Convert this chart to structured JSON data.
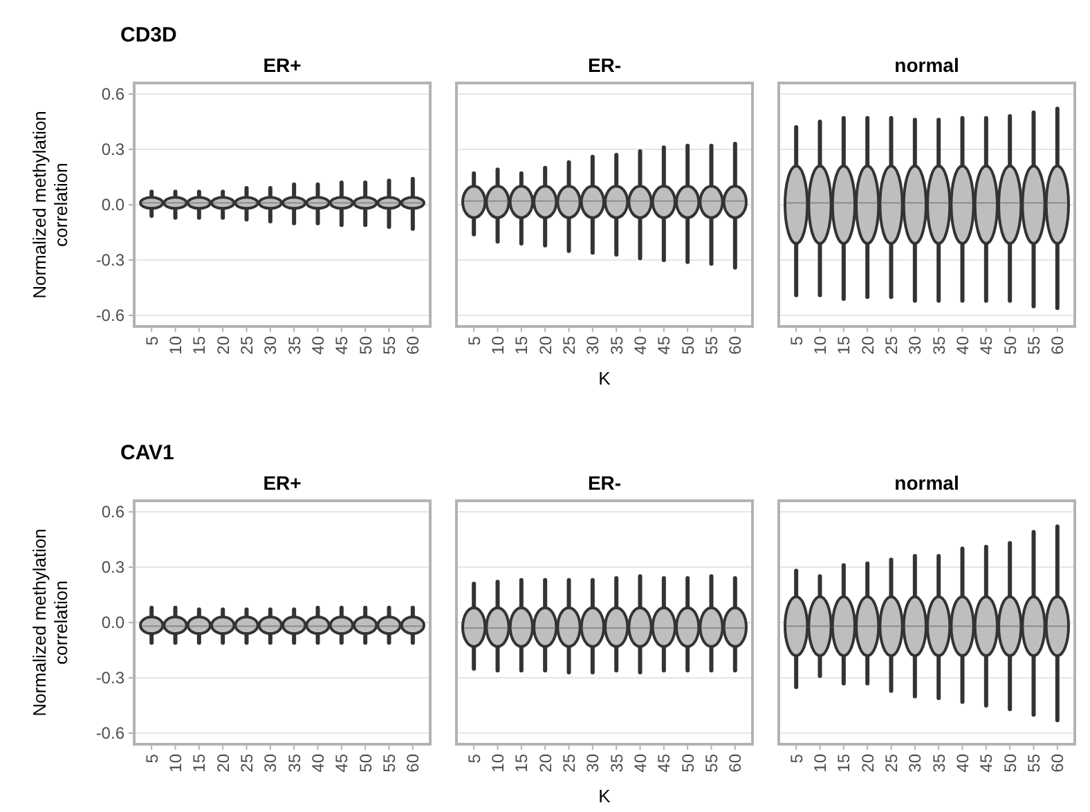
{
  "chart_data": [
    {
      "type": "box",
      "title": "CD3D",
      "subtitle": "ER+",
      "ylabel": "Normalized methylation correlation",
      "categories": [
        "5",
        "10",
        "15",
        "20",
        "25",
        "30",
        "35",
        "40",
        "45",
        "50",
        "55",
        "60"
      ],
      "ylim": [
        -0.66,
        0.66
      ],
      "yticks": [
        {
          "value": 0.6,
          "label": "0.6"
        },
        {
          "value": 0.3,
          "label": "0.3"
        },
        {
          "value": 0,
          "label": "0.0"
        },
        {
          "value": -0.3,
          "label": "-0.3"
        },
        {
          "value": -0.6,
          "label": "-0.6"
        }
      ],
      "grid": "y",
      "color": "#bebebe",
      "boxes": [
        {
          "low": -0.06,
          "q1": -0.02,
          "median": 0.01,
          "q3": 0.04,
          "high": 0.07
        },
        {
          "low": -0.07,
          "q1": -0.02,
          "median": 0.01,
          "q3": 0.04,
          "high": 0.07
        },
        {
          "low": -0.07,
          "q1": -0.02,
          "median": 0.01,
          "q3": 0.04,
          "high": 0.07
        },
        {
          "low": -0.07,
          "q1": -0.02,
          "median": 0.01,
          "q3": 0.04,
          "high": 0.07
        },
        {
          "low": -0.08,
          "q1": -0.02,
          "median": 0.01,
          "q3": 0.04,
          "high": 0.09
        },
        {
          "low": -0.09,
          "q1": -0.02,
          "median": 0.01,
          "q3": 0.04,
          "high": 0.09
        },
        {
          "low": -0.1,
          "q1": -0.02,
          "median": 0.01,
          "q3": 0.04,
          "high": 0.11
        },
        {
          "low": -0.1,
          "q1": -0.02,
          "median": 0.01,
          "q3": 0.04,
          "high": 0.11
        },
        {
          "low": -0.11,
          "q1": -0.02,
          "median": 0.01,
          "q3": 0.04,
          "high": 0.12
        },
        {
          "low": -0.11,
          "q1": -0.02,
          "median": 0.01,
          "q3": 0.04,
          "high": 0.12
        },
        {
          "low": -0.12,
          "q1": -0.02,
          "median": 0.01,
          "q3": 0.04,
          "high": 0.13
        },
        {
          "low": -0.13,
          "q1": -0.02,
          "median": 0.01,
          "q3": 0.04,
          "high": 0.14
        }
      ]
    },
    {
      "type": "box",
      "subtitle": "ER-",
      "xlabel": "K",
      "categories": [
        "5",
        "10",
        "15",
        "20",
        "25",
        "30",
        "35",
        "40",
        "45",
        "50",
        "55",
        "60"
      ],
      "ylim": [
        -0.66,
        0.66
      ],
      "yticks": [
        0.6,
        0.3,
        0,
        -0.3,
        -0.6
      ],
      "tick_labels": "x",
      "grid": "y",
      "color": "#bebebe",
      "boxes": [
        {
          "low": -0.16,
          "q1": -0.07,
          "median": 0.02,
          "q3": 0.1,
          "high": 0.17
        },
        {
          "low": -0.2,
          "q1": -0.07,
          "median": 0.02,
          "q3": 0.1,
          "high": 0.19
        },
        {
          "low": -0.21,
          "q1": -0.07,
          "median": 0.02,
          "q3": 0.1,
          "high": 0.17
        },
        {
          "low": -0.22,
          "q1": -0.07,
          "median": 0.02,
          "q3": 0.1,
          "high": 0.2
        },
        {
          "low": -0.25,
          "q1": -0.07,
          "median": 0.02,
          "q3": 0.1,
          "high": 0.23
        },
        {
          "low": -0.26,
          "q1": -0.07,
          "median": 0.02,
          "q3": 0.1,
          "high": 0.26
        },
        {
          "low": -0.27,
          "q1": -0.07,
          "median": 0.02,
          "q3": 0.1,
          "high": 0.27
        },
        {
          "low": -0.29,
          "q1": -0.07,
          "median": 0.02,
          "q3": 0.1,
          "high": 0.29
        },
        {
          "low": -0.3,
          "q1": -0.07,
          "median": 0.02,
          "q3": 0.1,
          "high": 0.31
        },
        {
          "low": -0.31,
          "q1": -0.07,
          "median": 0.02,
          "q3": 0.1,
          "high": 0.32
        },
        {
          "low": -0.32,
          "q1": -0.07,
          "median": 0.02,
          "q3": 0.1,
          "high": 0.32
        },
        {
          "low": -0.34,
          "q1": -0.07,
          "median": 0.02,
          "q3": 0.1,
          "high": 0.33
        }
      ]
    },
    {
      "type": "box",
      "subtitle": "normal",
      "categories": [
        "5",
        "10",
        "15",
        "20",
        "25",
        "30",
        "35",
        "40",
        "45",
        "50",
        "55",
        "60"
      ],
      "ylim": [
        -0.66,
        0.66
      ],
      "yticks": [
        0.6,
        0.3,
        0,
        -0.3,
        -0.6
      ],
      "tick_labels": "x",
      "grid": "y",
      "color": "#bebebe",
      "boxes": [
        {
          "low": -0.49,
          "q1": -0.21,
          "median": 0.01,
          "q3": 0.21,
          "high": 0.42
        },
        {
          "low": -0.49,
          "q1": -0.21,
          "median": 0.01,
          "q3": 0.21,
          "high": 0.45
        },
        {
          "low": -0.51,
          "q1": -0.21,
          "median": 0.01,
          "q3": 0.21,
          "high": 0.47
        },
        {
          "low": -0.5,
          "q1": -0.21,
          "median": 0.01,
          "q3": 0.21,
          "high": 0.47
        },
        {
          "low": -0.5,
          "q1": -0.21,
          "median": 0.01,
          "q3": 0.21,
          "high": 0.47
        },
        {
          "low": -0.52,
          "q1": -0.21,
          "median": 0.01,
          "q3": 0.21,
          "high": 0.46
        },
        {
          "low": -0.52,
          "q1": -0.21,
          "median": 0.01,
          "q3": 0.21,
          "high": 0.46
        },
        {
          "low": -0.52,
          "q1": -0.21,
          "median": 0.01,
          "q3": 0.21,
          "high": 0.47
        },
        {
          "low": -0.52,
          "q1": -0.21,
          "median": 0.01,
          "q3": 0.21,
          "high": 0.47
        },
        {
          "low": -0.52,
          "q1": -0.21,
          "median": 0.01,
          "q3": 0.21,
          "high": 0.48
        },
        {
          "low": -0.55,
          "q1": -0.21,
          "median": 0.01,
          "q3": 0.21,
          "high": 0.5
        },
        {
          "low": -0.56,
          "q1": -0.21,
          "median": 0.01,
          "q3": 0.21,
          "high": 0.52
        }
      ]
    },
    {
      "type": "box",
      "title": "CAV1",
      "subtitle": "ER+",
      "ylabel": "Normalized methylation correlation",
      "categories": [
        "5",
        "10",
        "15",
        "20",
        "25",
        "30",
        "35",
        "40",
        "45",
        "50",
        "55",
        "60"
      ],
      "ylim": [
        -0.66,
        0.66
      ],
      "yticks": [
        {
          "value": 0.6,
          "label": "0.6"
        },
        {
          "value": 0.3,
          "label": "0.3"
        },
        {
          "value": 0,
          "label": "0.0"
        },
        {
          "value": -0.3,
          "label": "-0.3"
        },
        {
          "value": -0.6,
          "label": "-0.6"
        }
      ],
      "grid": "y",
      "color": "#bebebe",
      "boxes": [
        {
          "low": -0.11,
          "q1": -0.06,
          "median": -0.02,
          "q3": 0.03,
          "high": 0.08
        },
        {
          "low": -0.11,
          "q1": -0.06,
          "median": -0.02,
          "q3": 0.03,
          "high": 0.08
        },
        {
          "low": -0.11,
          "q1": -0.06,
          "median": -0.02,
          "q3": 0.03,
          "high": 0.07
        },
        {
          "low": -0.11,
          "q1": -0.06,
          "median": -0.02,
          "q3": 0.03,
          "high": 0.07
        },
        {
          "low": -0.11,
          "q1": -0.06,
          "median": -0.02,
          "q3": 0.03,
          "high": 0.07
        },
        {
          "low": -0.11,
          "q1": -0.06,
          "median": -0.02,
          "q3": 0.03,
          "high": 0.07
        },
        {
          "low": -0.11,
          "q1": -0.06,
          "median": -0.02,
          "q3": 0.03,
          "high": 0.07
        },
        {
          "low": -0.11,
          "q1": -0.06,
          "median": -0.02,
          "q3": 0.03,
          "high": 0.08
        },
        {
          "low": -0.11,
          "q1": -0.06,
          "median": -0.02,
          "q3": 0.03,
          "high": 0.08
        },
        {
          "low": -0.11,
          "q1": -0.06,
          "median": -0.02,
          "q3": 0.03,
          "high": 0.08
        },
        {
          "low": -0.11,
          "q1": -0.06,
          "median": -0.02,
          "q3": 0.03,
          "high": 0.08
        },
        {
          "low": -0.11,
          "q1": -0.06,
          "median": -0.02,
          "q3": 0.03,
          "high": 0.08
        }
      ]
    },
    {
      "type": "box",
      "subtitle": "ER-",
      "xlabel": "K",
      "categories": [
        "5",
        "10",
        "15",
        "20",
        "25",
        "30",
        "35",
        "40",
        "45",
        "50",
        "55",
        "60"
      ],
      "ylim": [
        -0.66,
        0.66
      ],
      "yticks": [
        0.6,
        0.3,
        0,
        -0.3,
        -0.6
      ],
      "tick_labels": "x",
      "grid": "y",
      "color": "#bebebe",
      "boxes": [
        {
          "low": -0.25,
          "q1": -0.13,
          "median": -0.03,
          "q3": 0.08,
          "high": 0.21
        },
        {
          "low": -0.26,
          "q1": -0.13,
          "median": -0.03,
          "q3": 0.08,
          "high": 0.22
        },
        {
          "low": -0.26,
          "q1": -0.13,
          "median": -0.03,
          "q3": 0.08,
          "high": 0.23
        },
        {
          "low": -0.26,
          "q1": -0.13,
          "median": -0.03,
          "q3": 0.08,
          "high": 0.23
        },
        {
          "low": -0.27,
          "q1": -0.13,
          "median": -0.03,
          "q3": 0.08,
          "high": 0.23
        },
        {
          "low": -0.27,
          "q1": -0.13,
          "median": -0.03,
          "q3": 0.08,
          "high": 0.23
        },
        {
          "low": -0.26,
          "q1": -0.13,
          "median": -0.03,
          "q3": 0.08,
          "high": 0.24
        },
        {
          "low": -0.27,
          "q1": -0.13,
          "median": -0.03,
          "q3": 0.08,
          "high": 0.25
        },
        {
          "low": -0.26,
          "q1": -0.13,
          "median": -0.03,
          "q3": 0.08,
          "high": 0.24
        },
        {
          "low": -0.26,
          "q1": -0.13,
          "median": -0.03,
          "q3": 0.08,
          "high": 0.24
        },
        {
          "low": -0.26,
          "q1": -0.13,
          "median": -0.03,
          "q3": 0.08,
          "high": 0.25
        },
        {
          "low": -0.26,
          "q1": -0.13,
          "median": -0.03,
          "q3": 0.08,
          "high": 0.24
        }
      ]
    },
    {
      "type": "box",
      "subtitle": "normal",
      "categories": [
        "5",
        "10",
        "15",
        "20",
        "25",
        "30",
        "35",
        "40",
        "45",
        "50",
        "55",
        "60"
      ],
      "ylim": [
        -0.66,
        0.66
      ],
      "yticks": [
        0.6,
        0.3,
        0,
        -0.3,
        -0.6
      ],
      "tick_labels": "x",
      "grid": "y",
      "color": "#bebebe",
      "boxes": [
        {
          "low": -0.35,
          "q1": -0.18,
          "median": -0.02,
          "q3": 0.14,
          "high": 0.28
        },
        {
          "low": -0.29,
          "q1": -0.18,
          "median": -0.02,
          "q3": 0.14,
          "high": 0.25
        },
        {
          "low": -0.33,
          "q1": -0.18,
          "median": -0.02,
          "q3": 0.14,
          "high": 0.31
        },
        {
          "low": -0.33,
          "q1": -0.18,
          "median": -0.02,
          "q3": 0.14,
          "high": 0.32
        },
        {
          "low": -0.37,
          "q1": -0.18,
          "median": -0.02,
          "q3": 0.14,
          "high": 0.34
        },
        {
          "low": -0.4,
          "q1": -0.18,
          "median": -0.02,
          "q3": 0.14,
          "high": 0.36
        },
        {
          "low": -0.41,
          "q1": -0.18,
          "median": -0.02,
          "q3": 0.14,
          "high": 0.36
        },
        {
          "low": -0.43,
          "q1": -0.18,
          "median": -0.02,
          "q3": 0.14,
          "high": 0.4
        },
        {
          "low": -0.45,
          "q1": -0.18,
          "median": -0.02,
          "q3": 0.14,
          "high": 0.41
        },
        {
          "low": -0.47,
          "q1": -0.18,
          "median": -0.02,
          "q3": 0.14,
          "high": 0.43
        },
        {
          "low": -0.5,
          "q1": -0.18,
          "median": -0.02,
          "q3": 0.14,
          "high": 0.49
        },
        {
          "low": -0.53,
          "q1": -0.18,
          "median": -0.02,
          "q3": 0.14,
          "high": 0.52
        }
      ]
    }
  ]
}
